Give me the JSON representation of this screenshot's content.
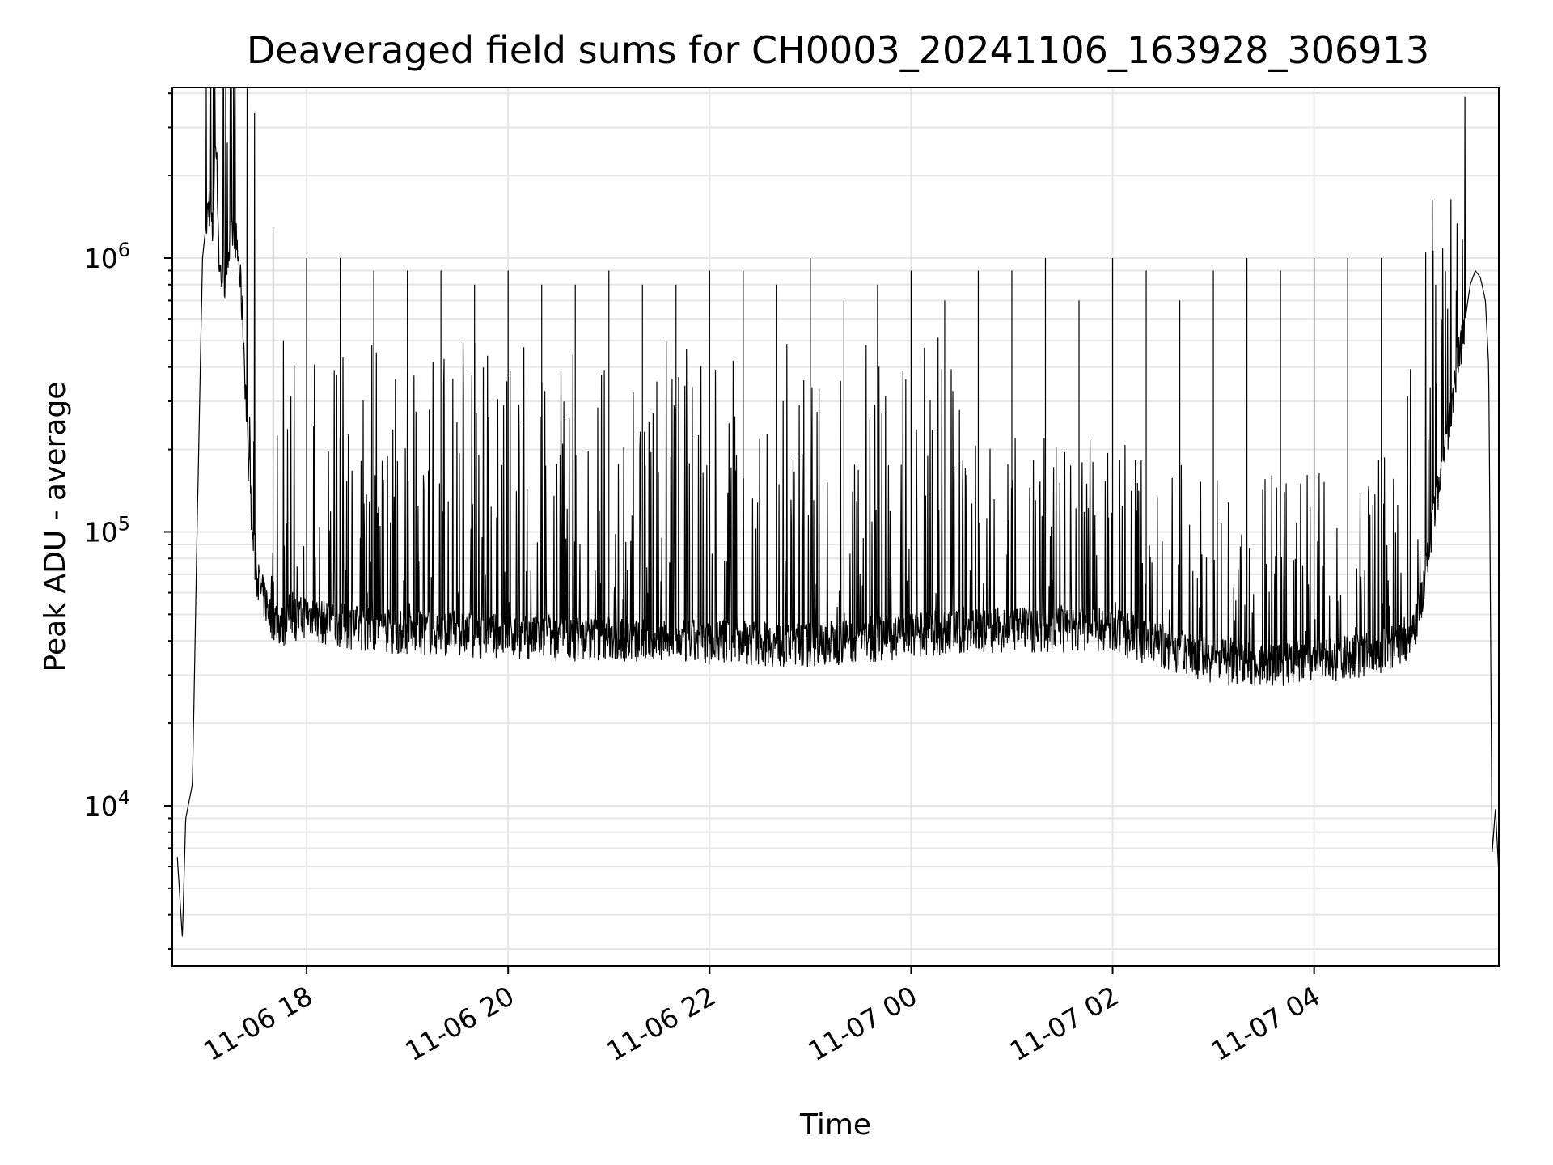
{
  "chart_data": {
    "type": "line",
    "title": "Deaveraged field sums for CH0003_20241106_163928_306913",
    "xlabel": "Time",
    "ylabel": "Peak ADU - average",
    "yscale": "log",
    "ylim": [
      2600,
      4200000
    ],
    "xlim": [
      "2024-11-06 16:40",
      "2024-11-07 05:50"
    ],
    "grid": true,
    "x_ticks": [
      {
        "value": "2024-11-06 18:00",
        "label": "11-06 18"
      },
      {
        "value": "2024-11-06 20:00",
        "label": "11-06 20"
      },
      {
        "value": "2024-11-06 22:00",
        "label": "11-06 22"
      },
      {
        "value": "2024-11-07 00:00",
        "label": "11-07 00"
      },
      {
        "value": "2024-11-07 02:00",
        "label": "11-07 02"
      },
      {
        "value": "2024-11-07 04:00",
        "label": "11-07 04"
      }
    ],
    "y_ticks": [
      {
        "value": 10000,
        "base": "10",
        "exp": "4"
      },
      {
        "value": 100000,
        "base": "10",
        "exp": "5"
      },
      {
        "value": 1000000,
        "base": "10",
        "exp": "6"
      }
    ],
    "series": [
      {
        "color": "#000000",
        "x": [
          "2024-11-06 16:43",
          "2024-11-06 16:46",
          "2024-11-06 16:48",
          "2024-11-06 16:52",
          "2024-11-06 16:55",
          "2024-11-06 16:58",
          "2024-11-06 17:00",
          "2024-11-06 17:02",
          "2024-11-06 17:04",
          "2024-11-06 17:06",
          "2024-11-06 17:08",
          "2024-11-06 17:11",
          "2024-11-06 17:14",
          "2024-11-06 17:17",
          "2024-11-06 17:20",
          "2024-11-06 17:22",
          "2024-11-06 17:25",
          "2024-11-06 17:28",
          "2024-11-06 17:30",
          "2024-11-06 17:33",
          "2024-11-06 17:36",
          "2024-11-06 17:38",
          "2024-11-06 17:42",
          "2024-11-06 17:46",
          "2024-11-06 17:50",
          "2024-11-06 17:55",
          "2024-11-06 18:00",
          "2024-11-06 18:10",
          "2024-11-06 18:20",
          "2024-11-06 18:30",
          "2024-11-06 18:45",
          "2024-11-06 19:00",
          "2024-11-06 19:15",
          "2024-11-06 19:30",
          "2024-11-06 19:45",
          "2024-11-06 20:00",
          "2024-11-06 20:15",
          "2024-11-06 20:30",
          "2024-11-06 20:45",
          "2024-11-06 21:00",
          "2024-11-06 21:20",
          "2024-11-06 21:40",
          "2024-11-06 22:00",
          "2024-11-06 22:20",
          "2024-11-06 22:40",
          "2024-11-06 23:00",
          "2024-11-06 23:20",
          "2024-11-06 23:40",
          "2024-11-07 00:00",
          "2024-11-07 00:20",
          "2024-11-07 00:40",
          "2024-11-07 01:00",
          "2024-11-07 01:20",
          "2024-11-07 01:40",
          "2024-11-07 02:00",
          "2024-11-07 02:20",
          "2024-11-07 02:40",
          "2024-11-07 03:00",
          "2024-11-07 03:20",
          "2024-11-07 03:40",
          "2024-11-07 04:00",
          "2024-11-07 04:20",
          "2024-11-07 04:40",
          "2024-11-07 04:55",
          "2024-11-07 05:00",
          "2024-11-07 05:05",
          "2024-11-07 05:10",
          "2024-11-07 05:15",
          "2024-11-07 05:20",
          "2024-11-07 05:25",
          "2024-11-07 05:30",
          "2024-11-07 05:33",
          "2024-11-07 05:36",
          "2024-11-07 05:39",
          "2024-11-07 05:42",
          "2024-11-07 05:44",
          "2024-11-07 05:46",
          "2024-11-07 05:48",
          "2024-11-07 05:50"
        ],
        "y": [
          6500,
          3300,
          9000,
          12000,
          120000,
          1000000,
          1300000,
          1600000,
          1200000,
          3000000,
          900000,
          800000,
          1100000,
          1300000,
          900000,
          600000,
          200000,
          90000,
          70000,
          60000,
          55000,
          50000,
          48000,
          45000,
          50000,
          48000,
          50000,
          47000,
          46000,
          45000,
          44000,
          43000,
          43000,
          43000,
          42000,
          42000,
          41000,
          41000,
          41000,
          41000,
          40000,
          40000,
          40000,
          40000,
          39000,
          39000,
          40000,
          41000,
          42000,
          43000,
          44000,
          44000,
          44000,
          44000,
          44000,
          40000,
          37000,
          34000,
          33000,
          33000,
          34000,
          35000,
          37000,
          40000,
          46000,
          60000,
          100000,
          150000,
          250000,
          400000,
          600000,
          800000,
          900000,
          850000,
          700000,
          400000,
          6700,
          9800,
          5600
        ],
        "spikes_x": [
          "2024-11-06 17:40",
          "2024-11-06 18:00",
          "2024-11-06 18:20",
          "2024-11-06 18:40",
          "2024-11-06 19:00",
          "2024-11-06 19:20",
          "2024-11-06 19:40",
          "2024-11-06 20:00",
          "2024-11-06 20:20",
          "2024-11-06 20:40",
          "2024-11-06 21:00",
          "2024-11-06 21:20",
          "2024-11-06 21:40",
          "2024-11-06 22:00",
          "2024-11-06 22:20",
          "2024-11-06 22:40",
          "2024-11-06 23:00",
          "2024-11-06 23:20",
          "2024-11-06 23:40",
          "2024-11-07 00:00",
          "2024-11-07 00:20",
          "2024-11-07 00:40",
          "2024-11-07 01:00",
          "2024-11-07 01:20",
          "2024-11-07 01:40",
          "2024-11-07 02:00",
          "2024-11-07 02:20",
          "2024-11-07 02:40",
          "2024-11-07 03:00",
          "2024-11-07 03:20",
          "2024-11-07 03:40",
          "2024-11-07 04:00",
          "2024-11-07 04:20",
          "2024-11-07 04:40"
        ],
        "spikes_y": [
          1300000,
          1000000,
          1000000,
          900000,
          900000,
          900000,
          800000,
          900000,
          800000,
          800000,
          900000,
          800000,
          800000,
          900000,
          900000,
          800000,
          1000000,
          700000,
          800000,
          900000,
          700000,
          900000,
          900000,
          1000000,
          700000,
          1000000,
          900000,
          700000,
          900000,
          1000000,
          900000,
          1000000,
          1000000,
          1000000
        ]
      }
    ]
  }
}
